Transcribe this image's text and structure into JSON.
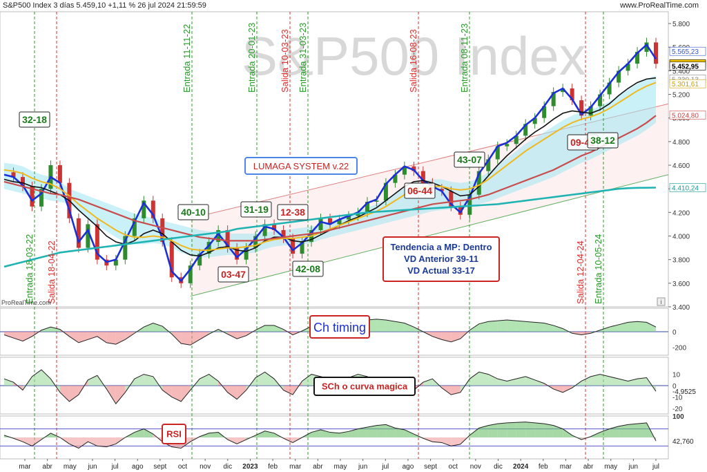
{
  "header": {
    "title": "S&P500 Index 3 días 5.459,10 +1,11 % 26 jul 2024 21:59:59",
    "brand": "www.ProRealTime.com"
  },
  "watermark": "S&P500 Index",
  "source_label": "ProRealTime.com",
  "info_icon": "i",
  "colors": {
    "price_candle_up": "#2e8b2e",
    "price_candle_down": "#cc3333",
    "ma_blue": "#1a2fd6",
    "ma_black": "#111111",
    "ma_yellow": "#f0b81c",
    "ma_red": "#c94b4b",
    "ma_cyan": "#20b3b3",
    "cloud_cyan": "#9ee6f2",
    "cloud_red": "#f29a9a",
    "entry_line": "#2a9a2a",
    "exit_line": "#e03030"
  },
  "chart_data": [
    {
      "type": "line",
      "name": "price",
      "ylim": [
        3400,
        5900
      ],
      "y_ticks": [
        "5.800",
        "5.600",
        "5.400",
        "5.200",
        "5.000",
        "4.800",
        "4.600",
        "4.400",
        "4.200",
        "4.000",
        "3.800",
        "3.600",
        "3.400"
      ],
      "y_tick_values": [
        5800,
        5600,
        5400,
        5200,
        5000,
        4800,
        4600,
        4400,
        4200,
        4000,
        3800,
        3600,
        3400
      ],
      "x_ticks": [
        "mar",
        "abr",
        "may",
        "jun",
        "jul",
        "ago",
        "sept",
        "oct",
        "nov",
        "dic",
        "2023",
        "feb",
        "mar",
        "abr",
        "may",
        "jun",
        "jul",
        "ago",
        "sept",
        "oct",
        "nov",
        "dic",
        "2024",
        "feb",
        "mar",
        "abr",
        "may",
        "jun",
        "jul"
      ],
      "price_labels": [
        {
          "text": "5.565,23",
          "value": 5565,
          "color": "#3355cc",
          "bg": "#ffffff"
        },
        {
          "text": "5.459,10",
          "value": 5459,
          "color": "#000000",
          "bg": "#ffcc00"
        },
        {
          "text": "5.452,95",
          "value": 5440,
          "color": "#000000",
          "bg": "#ffffff"
        },
        {
          "text": "5.330,13",
          "value": 5330,
          "color": "#888888",
          "bg": "#ffffff"
        },
        {
          "text": "5.301,61",
          "value": 5290,
          "color": "#c9a000",
          "bg": "#ffffff"
        },
        {
          "text": "5.024,80",
          "value": 5025,
          "color": "#cc4444",
          "bg": "#ffffff"
        },
        {
          "text": "4.410,24",
          "value": 4410,
          "color": "#119999",
          "bg": "#ffffff"
        }
      ],
      "series": [
        {
          "key": "close",
          "values": [
            4540,
            4500,
            4420,
            4250,
            4400,
            4600,
            4450,
            4150,
            3900,
            4100,
            3800,
            3750,
            3800,
            4000,
            4150,
            4300,
            4150,
            3950,
            3650,
            3600,
            3750,
            3850,
            3950,
            4050,
            3900,
            3800,
            3900,
            4000,
            4100,
            4050,
            3980,
            3850,
            3950,
            4050,
            4150,
            4100,
            4140,
            4170,
            4200,
            4290,
            4300,
            4450,
            4520,
            4590,
            4550,
            4450,
            4400,
            4380,
            4250,
            4180,
            4350,
            4550,
            4650,
            4760,
            4780,
            4850,
            4950,
            5000,
            5100,
            5220,
            5250,
            5150,
            5020,
            5100,
            5200,
            5300,
            5400,
            5460,
            5560,
            5640,
            5459
          ]
        },
        {
          "key": "ma_blue",
          "values": [
            4520,
            4500,
            4430,
            4300,
            4360,
            4500,
            4450,
            4220,
            3950,
            4050,
            3850,
            3780,
            3800,
            3960,
            4120,
            4280,
            4180,
            3980,
            3700,
            3620,
            3720,
            3840,
            3920,
            4020,
            3920,
            3820,
            3890,
            3980,
            4080,
            4060,
            3990,
            3880,
            3940,
            4030,
            4120,
            4100,
            4140,
            4170,
            4200,
            4280,
            4310,
            4440,
            4520,
            4590,
            4560,
            4470,
            4420,
            4380,
            4270,
            4200,
            4330,
            4530,
            4640,
            4760,
            4790,
            4850,
            4940,
            5000,
            5100,
            5210,
            5250,
            5160,
            5030,
            5090,
            5190,
            5290,
            5390,
            5460,
            5550,
            5620,
            5500
          ]
        },
        {
          "key": "ma_black",
          "values": [
            4480,
            4460,
            4450,
            4420,
            4410,
            4380,
            4350,
            4300,
            4220,
            4150,
            4080,
            4000,
            3950,
            3930,
            3960,
            4020,
            4050,
            4020,
            3950,
            3880,
            3840,
            3830,
            3860,
            3900,
            3910,
            3880,
            3870,
            3900,
            3960,
            3990,
            3990,
            3960,
            3950,
            3970,
            4010,
            4050,
            4090,
            4130,
            4160,
            4200,
            4240,
            4300,
            4360,
            4420,
            4460,
            4470,
            4450,
            4420,
            4380,
            4340,
            4350,
            4420,
            4510,
            4600,
            4680,
            4750,
            4820,
            4880,
            4930,
            4990,
            5040,
            5060,
            5050,
            5040,
            5070,
            5120,
            5190,
            5250,
            5300,
            5330,
            5340
          ]
        },
        {
          "key": "ma_yellow",
          "values": [
            4560,
            4550,
            4530,
            4490,
            4460,
            4440,
            4400,
            4340,
            4270,
            4210,
            4150,
            4100,
            4050,
            4010,
            3990,
            3990,
            4000,
            3990,
            3960,
            3920,
            3890,
            3880,
            3880,
            3890,
            3900,
            3900,
            3910,
            3920,
            3950,
            3970,
            3980,
            3980,
            3990,
            4000,
            4030,
            4060,
            4090,
            4120,
            4150,
            4180,
            4210,
            4250,
            4300,
            4350,
            4390,
            4410,
            4420,
            4420,
            4400,
            4390,
            4400,
            4430,
            4480,
            4540,
            4600,
            4660,
            4720,
            4770,
            4820,
            4870,
            4920,
            4960,
            4990,
            5010,
            5040,
            5080,
            5130,
            5180,
            5230,
            5270,
            5300
          ]
        },
        {
          "key": "ma_red",
          "values": [
            4460,
            4440,
            4420,
            4400,
            4380,
            4360,
            4350,
            4330,
            4310,
            4280,
            4250,
            4220,
            4190,
            4160,
            4130,
            4110,
            4090,
            4070,
            4050,
            4030,
            4010,
            3990,
            3980,
            3970,
            3960,
            3960,
            3960,
            3960,
            3970,
            3980,
            3990,
            4000,
            4010,
            4020,
            4030,
            4050,
            4070,
            4090,
            4110,
            4130,
            4150,
            4170,
            4190,
            4210,
            4230,
            4250,
            4270,
            4280,
            4290,
            4300,
            4310,
            4330,
            4350,
            4380,
            4410,
            4440,
            4470,
            4500,
            4530,
            4560,
            4600,
            4640,
            4680,
            4710,
            4750,
            4790,
            4830,
            4870,
            4910,
            4960,
            5020
          ]
        },
        {
          "key": "ma_cyan",
          "values": [
            3740,
            3760,
            3780,
            3800,
            3820,
            3840,
            3860,
            3870,
            3880,
            3890,
            3900,
            3910,
            3920,
            3930,
            3940,
            3950,
            3960,
            3970,
            3980,
            3990,
            4000,
            4010,
            4020,
            4030,
            4040,
            4060,
            4070,
            4080,
            4090,
            4100,
            4110,
            4120,
            4130,
            4140,
            4150,
            4160,
            4170,
            4180,
            4190,
            4200,
            4205,
            4210,
            4215,
            4220,
            4225,
            4230,
            4235,
            4240,
            4245,
            4250,
            4255,
            4260,
            4265,
            4270,
            4280,
            4290,
            4300,
            4310,
            4320,
            4330,
            4340,
            4350,
            4360,
            4370,
            4380,
            4390,
            4400,
            4405,
            4408,
            4409,
            4410
          ]
        }
      ]
    },
    {
      "type": "area",
      "name": "timing",
      "ylim": [
        -300,
        300
      ],
      "y_ticks": [
        "0",
        "-200"
      ],
      "y_tick_values": [
        0,
        -200
      ],
      "values": [
        -40,
        -80,
        -120,
        -60,
        20,
        60,
        30,
        -60,
        -140,
        -100,
        -60,
        -140,
        -160,
        -100,
        -20,
        60,
        110,
        70,
        -30,
        -150,
        -170,
        -100,
        -30,
        30,
        -30,
        -90,
        -50,
        20,
        80,
        80,
        30,
        -40,
        10,
        70,
        110,
        120,
        110,
        100,
        120,
        150,
        160,
        150,
        130,
        110,
        60,
        0,
        -60,
        -100,
        -130,
        -90,
        20,
        100,
        130,
        140,
        150,
        140,
        130,
        120,
        110,
        80,
        40,
        -20,
        -40,
        -20,
        20,
        60,
        90,
        120,
        130,
        120,
        60
      ]
    },
    {
      "type": "area",
      "name": "curva_magica",
      "ylim": [
        -25,
        25
      ],
      "y_ticks": [
        "10",
        "0",
        "-10",
        "-20"
      ],
      "y_tick_values": [
        10,
        0,
        -10,
        -20
      ],
      "current": "-4,9525",
      "values": [
        6,
        3,
        -4,
        8,
        14,
        6,
        -6,
        -14,
        -8,
        5,
        9,
        -3,
        -16,
        -6,
        6,
        10,
        8,
        -4,
        -10,
        -14,
        -4,
        6,
        10,
        4,
        -6,
        -12,
        -4,
        7,
        12,
        6,
        -4,
        -8,
        4,
        10,
        8,
        6,
        4,
        7,
        10,
        8,
        4,
        -2,
        -6,
        -8,
        -4,
        3,
        6,
        -2,
        -8,
        -6,
        6,
        12,
        10,
        6,
        4,
        6,
        8,
        5,
        2,
        -3,
        -6,
        -2,
        4,
        8,
        10,
        8,
        6,
        4,
        6,
        7,
        -5
      ]
    },
    {
      "type": "area",
      "name": "rsi",
      "ylim": [
        0,
        100
      ],
      "y_ticks": [
        "100"
      ],
      "y_tick_values": [
        100
      ],
      "current": "42,760",
      "values": [
        55,
        48,
        40,
        30,
        45,
        60,
        50,
        35,
        25,
        40,
        30,
        28,
        35,
        50,
        62,
        70,
        58,
        40,
        28,
        25,
        40,
        52,
        60,
        62,
        45,
        35,
        45,
        55,
        65,
        60,
        48,
        38,
        50,
        62,
        68,
        62,
        60,
        64,
        70,
        74,
        78,
        80,
        72,
        68,
        58,
        48,
        40,
        38,
        30,
        34,
        55,
        72,
        78,
        82,
        84,
        85,
        86,
        84,
        82,
        78,
        70,
        55,
        45,
        52,
        62,
        70,
        76,
        80,
        82,
        84,
        42
      ]
    }
  ],
  "annotations": {
    "vertical_lines": [
      {
        "label": "Entrada 18-03-22",
        "kind": "entry"
      },
      {
        "label": "Salida 18-04-22",
        "kind": "exit"
      },
      {
        "label": "Entrada 11-11-22",
        "kind": "entry"
      },
      {
        "label": "Entrada 20-01-23",
        "kind": "entry"
      },
      {
        "label": "Salida 10-03-23",
        "kind": "exit"
      },
      {
        "label": "Entrada 31-03-23",
        "kind": "entry"
      },
      {
        "label": "Salida 16-08-23",
        "kind": "exit"
      },
      {
        "label": "Entrada 08-11-23",
        "kind": "entry"
      },
      {
        "label": "Salida 12-04-24",
        "kind": "exit"
      },
      {
        "label": "Entrada 10-05-24",
        "kind": "entry"
      }
    ],
    "boxes": [
      {
        "text": "32-18",
        "color": "#1a7a1a"
      },
      {
        "text": "40-10",
        "color": "#1a7a1a"
      },
      {
        "text": "03-47",
        "color": "#cc2222"
      },
      {
        "text": "31-19",
        "color": "#1a7a1a"
      },
      {
        "text": "12-38",
        "color": "#cc2222"
      },
      {
        "text": "42-08",
        "color": "#1a7a1a"
      },
      {
        "text": "06-44",
        "color": "#cc2222"
      },
      {
        "text": "43-07",
        "color": "#1a7a1a"
      },
      {
        "text": "09-41",
        "color": "#cc2222"
      },
      {
        "text": "38-12",
        "color": "#1a7a1a"
      }
    ],
    "system_title": "LUMAGA SYSTEM v.22",
    "trend_box": [
      "Tendencia a MP: Dentro",
      "VD Anterior 39-11",
      "VD Actual 33-17"
    ],
    "panel_labels": {
      "timing": "Ch timing",
      "curva": "SCh o curva magica",
      "rsi": "RSI"
    }
  }
}
